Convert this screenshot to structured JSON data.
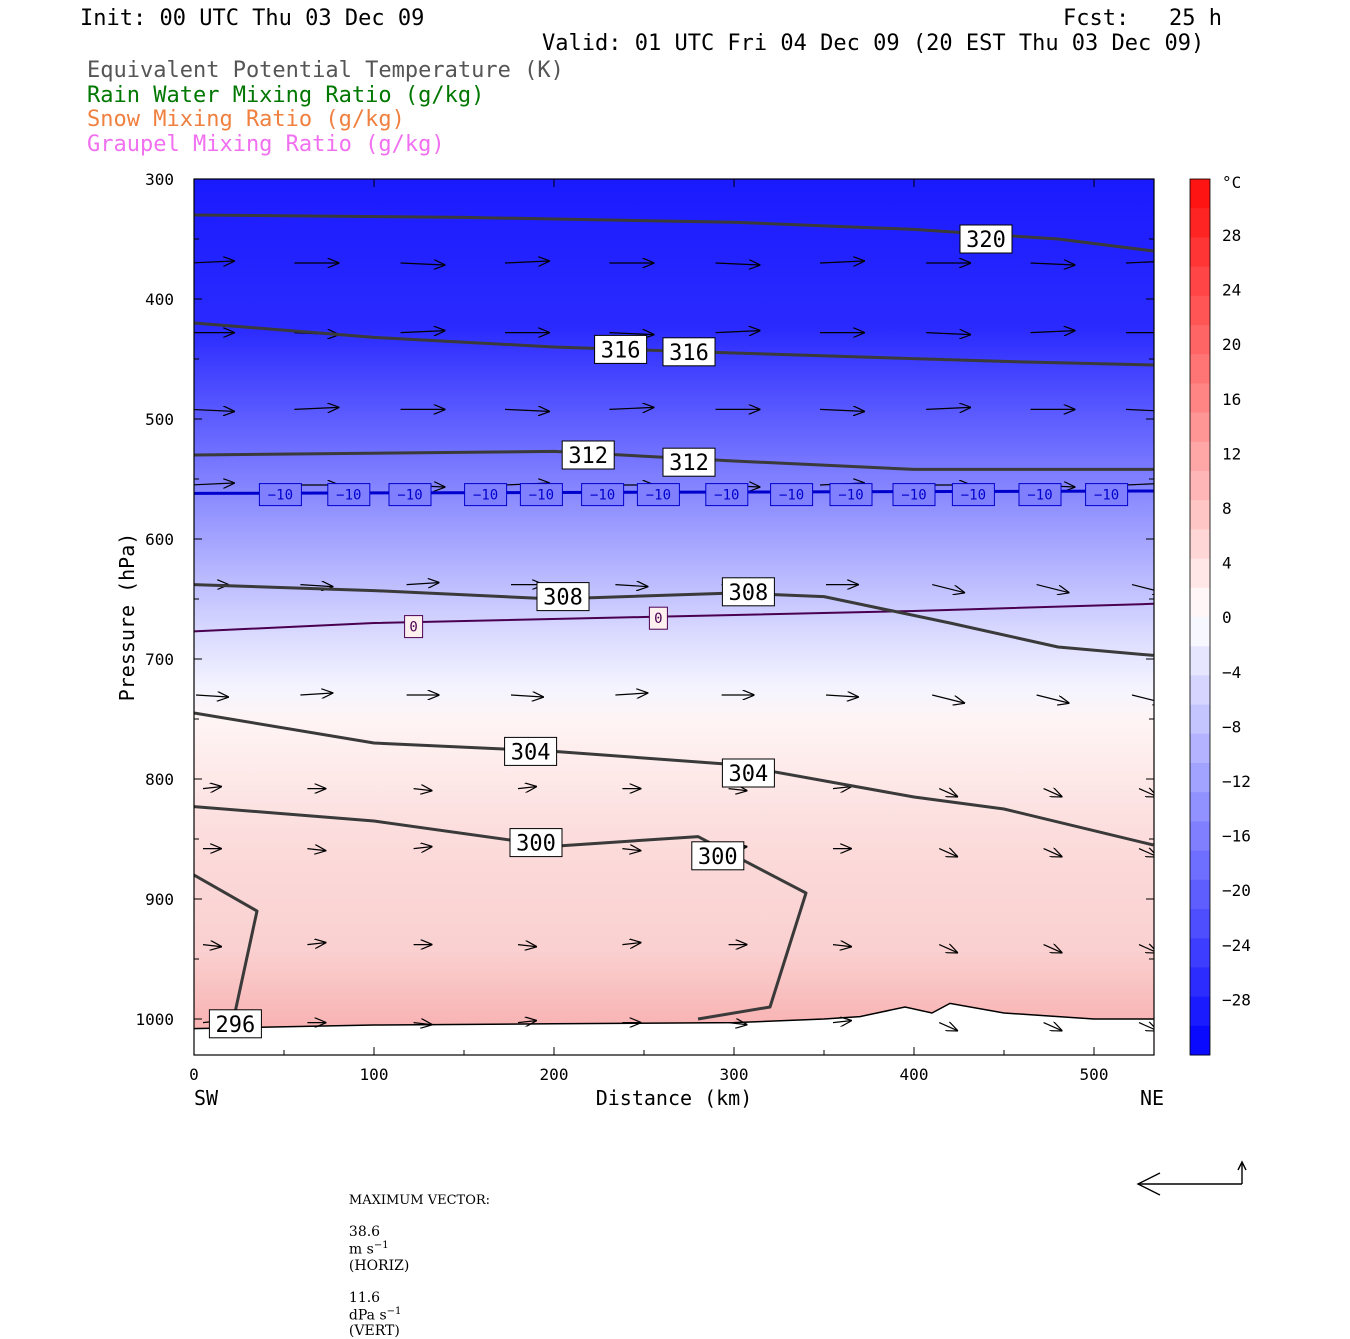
{
  "header": {
    "init": "Init: 00 UTC Thu 03 Dec 09",
    "fcst": "Fcst:   25 h",
    "valid": "Valid: 01 UTC Fri 04 Dec 09 (20 EST Thu 03 Dec 09)"
  },
  "legend_lines": [
    {
      "text": "Equivalent Potential Temperature (K)",
      "color": "#555555"
    },
    {
      "text": "Rain Water Mixing Ratio (g/kg)",
      "color": "#007700"
    },
    {
      "text": "Snow Mixing Ratio (g/kg)",
      "color": "#f08040"
    },
    {
      "text": "Graupel Mixing Ratio (g/kg)",
      "color": "#f070f0"
    }
  ],
  "chart_data": {
    "type": "cross-section",
    "xlabel": "Distance (km)",
    "ylabel": "Pressure (hPa)",
    "xlim": [
      0,
      533
    ],
    "ylim": [
      1030,
      300
    ],
    "x_ticks": [
      "0",
      "100",
      "200",
      "300",
      "400",
      "500"
    ],
    "y_ticks": [
      "300",
      "400",
      "500",
      "600",
      "700",
      "800",
      "900",
      "1000"
    ],
    "left_end": "SW",
    "right_end": "NE",
    "colorbar": {
      "unit": "°C",
      "labels": [
        "28",
        "24",
        "20",
        "16",
        "12",
        "8",
        "4",
        "0",
        "−4",
        "−8",
        "−12",
        "−16",
        "−20",
        "−24",
        "−28"
      ]
    },
    "theta_e_contours": [
      {
        "level": "320",
        "points": [
          [
            0,
            330
          ],
          [
            150,
            332
          ],
          [
            300,
            336
          ],
          [
            400,
            342
          ],
          [
            480,
            350
          ],
          [
            533,
            360
          ]
        ],
        "label_at": [
          440,
          350
        ]
      },
      {
        "level": "316",
        "points": [
          [
            0,
            420
          ],
          [
            100,
            432
          ],
          [
            200,
            440
          ],
          [
            300,
            445
          ],
          [
            450,
            452
          ],
          [
            533,
            455
          ]
        ],
        "label_at": [
          [
            237,
            442
          ],
          [
            275,
            444
          ]
        ]
      },
      {
        "level": "312",
        "points": [
          [
            0,
            530
          ],
          [
            200,
            527
          ],
          [
            300,
            535
          ],
          [
            400,
            542
          ],
          [
            480,
            542
          ],
          [
            533,
            542
          ]
        ],
        "label_at": [
          [
            219,
            530
          ],
          [
            275,
            536
          ]
        ]
      },
      {
        "level": "308",
        "points": [
          [
            0,
            638
          ],
          [
            100,
            643
          ],
          [
            200,
            650
          ],
          [
            300,
            645
          ],
          [
            350,
            648
          ],
          [
            420,
            670
          ],
          [
            480,
            690
          ],
          [
            533,
            697
          ]
        ],
        "label_at": [
          [
            205,
            648
          ],
          [
            308,
            644
          ]
        ]
      },
      {
        "level": "304",
        "points": [
          [
            0,
            745
          ],
          [
            100,
            770
          ],
          [
            200,
            777
          ],
          [
            300,
            788
          ],
          [
            400,
            815
          ],
          [
            450,
            825
          ],
          [
            533,
            855
          ]
        ],
        "label_at": [
          [
            187,
            777
          ],
          [
            308,
            795
          ]
        ]
      },
      {
        "level": "300",
        "points": [
          [
            0,
            823
          ],
          [
            100,
            835
          ],
          [
            200,
            856
          ],
          [
            280,
            848
          ],
          [
            340,
            895
          ],
          [
            320,
            990
          ],
          [
            280,
            1000
          ]
        ],
        "label_at": [
          [
            190,
            853
          ],
          [
            291,
            864
          ]
        ]
      },
      {
        "level": "296",
        "points": [
          [
            0,
            880
          ],
          [
            35,
            910
          ],
          [
            22,
            1000
          ]
        ],
        "label_at": [
          [
            23,
            1004
          ]
        ]
      }
    ],
    "isotherms": [
      {
        "level": "0",
        "points": [
          [
            0,
            677
          ],
          [
            100,
            670
          ],
          [
            250,
            665
          ],
          [
            400,
            660
          ],
          [
            533,
            654
          ]
        ],
        "label_at": [
          [
            122,
            673
          ],
          [
            258,
            666
          ]
        ]
      },
      {
        "level": "−10",
        "points": [
          [
            0,
            562
          ],
          [
            533,
            560
          ]
        ],
        "label_at": [
          [
            48,
            563
          ],
          [
            86,
            563
          ],
          [
            120,
            563
          ],
          [
            162,
            563
          ],
          [
            193,
            563
          ],
          [
            227,
            563
          ],
          [
            258,
            563
          ],
          [
            296,
            563
          ],
          [
            332,
            563
          ],
          [
            365,
            563
          ],
          [
            400,
            563
          ],
          [
            433,
            563
          ],
          [
            470,
            563
          ],
          [
            507,
            563
          ]
        ]
      }
    ],
    "max_vector": {
      "label": "MAXIMUM VECTOR:",
      "horiz_value": "38.6",
      "horiz_unit": "m s",
      "horiz_exp": "−1",
      "horiz_tag": "(HORIZ)",
      "vert_value": "11.6",
      "vert_unit": "dPa s",
      "vert_exp": "−1",
      "vert_tag": "(VERT)"
    }
  }
}
